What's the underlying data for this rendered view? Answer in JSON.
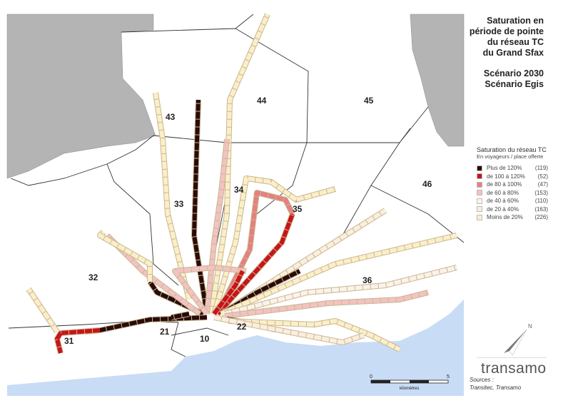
{
  "title": {
    "lines": [
      "Saturation en",
      "période de pointe",
      "du réseau TC",
      "du Grand Sfax"
    ],
    "scenario_lines": [
      "Scénario 2030",
      "Scénario Egis"
    ]
  },
  "legend": {
    "title": "Saturation du réseau TC",
    "subtitle": "En voyageurs / place offerte",
    "items": [
      {
        "label": "Plus de 120%",
        "count": "(119)",
        "color": "#2a0a0a"
      },
      {
        "label": "de 100 à 120%",
        "count": "(52)",
        "color": "#c8141a"
      },
      {
        "label": "de 80 à 100%",
        "count": "(47)",
        "color": "#e58080"
      },
      {
        "label": "de 60 à 80%",
        "count": "(153)",
        "color": "#f3c2c2"
      },
      {
        "label": "de 40 à 60%",
        "count": "(110)",
        "color": "#fbf2ea"
      },
      {
        "label": "de 20 à 40%",
        "count": "(163)",
        "color": "#fbeede"
      },
      {
        "label": "Moins de 20%",
        "count": "(226)",
        "color": "#fbeec8"
      }
    ]
  },
  "zones": [
    "43",
    "44",
    "45",
    "46",
    "33",
    "34",
    "35",
    "32",
    "36",
    "21",
    "10",
    "22",
    "31"
  ],
  "scale": {
    "start": "0",
    "end": "5",
    "unit": "kilomètres"
  },
  "north_label": "N",
  "logo": "transamo",
  "sources": {
    "label": "Sources :",
    "text": "Transitec, Transamo"
  },
  "colors": {
    "sea": "#c9dcf5",
    "outside": "#b4b4b4"
  }
}
